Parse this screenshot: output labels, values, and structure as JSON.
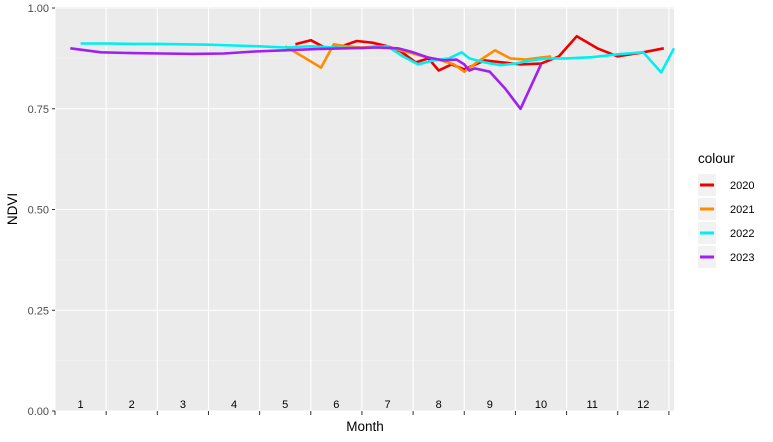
{
  "chart_data": {
    "type": "line",
    "xlabel": "Month",
    "ylabel": "NDVI",
    "ylim": [
      0,
      1
    ],
    "y_ticks": [
      "0.00",
      "0.25",
      "0.50",
      "0.75",
      "1.00"
    ],
    "y_tick_values": [
      0,
      0.25,
      0.5,
      0.75,
      1.0
    ],
    "xlim": [
      0.5,
      12.6
    ],
    "month_labels": [
      "1",
      "2",
      "3",
      "4",
      "5",
      "6",
      "7",
      "8",
      "9",
      "10",
      "11",
      "12"
    ],
    "grid": true,
    "legend": {
      "title": "colour",
      "position": "right"
    },
    "series": [
      {
        "name": "2020",
        "color": "#ee0000",
        "x": [
          5.2,
          5.5,
          5.8,
          6.1,
          6.4,
          6.7,
          7.0,
          7.25,
          7.55,
          7.8,
          8.0,
          8.25,
          8.5,
          8.9,
          9.25,
          9.6,
          10.0,
          10.35,
          10.7,
          11.1,
          11.5,
          12.0,
          12.4
        ],
        "y": [
          0.91,
          0.92,
          0.9,
          0.905,
          0.918,
          0.914,
          0.905,
          0.893,
          0.865,
          0.875,
          0.845,
          0.86,
          0.848,
          0.87,
          0.865,
          0.86,
          0.862,
          0.88,
          0.93,
          0.9,
          0.88,
          0.89,
          0.9
        ]
      },
      {
        "name": "2021",
        "color": "#ff8c00",
        "x": [
          5.0,
          5.4,
          5.7,
          5.95,
          6.2,
          6.5,
          6.8,
          7.1,
          7.4,
          7.7,
          8.0,
          8.3,
          8.5,
          8.8,
          9.1,
          9.4,
          9.7,
          10.0,
          10.2
        ],
        "y": [
          0.905,
          0.875,
          0.852,
          0.91,
          0.905,
          0.902,
          0.905,
          0.9,
          0.89,
          0.88,
          0.872,
          0.86,
          0.842,
          0.87,
          0.895,
          0.875,
          0.872,
          0.877,
          0.88
        ]
      },
      {
        "name": "2022",
        "color": "#00f0f0",
        "x": [
          1.0,
          1.5,
          2.0,
          2.5,
          3.0,
          3.5,
          4.0,
          4.5,
          5.0,
          5.5,
          6.0,
          6.5,
          7.0,
          7.3,
          7.6,
          7.9,
          8.2,
          8.45,
          8.6,
          8.9,
          9.2,
          9.5,
          9.8,
          10.1,
          10.5,
          11.0,
          11.5,
          12.0,
          12.35,
          12.6
        ],
        "y": [
          0.912,
          0.912,
          0.911,
          0.911,
          0.91,
          0.909,
          0.907,
          0.905,
          0.902,
          0.905,
          0.902,
          0.9,
          0.905,
          0.88,
          0.86,
          0.87,
          0.875,
          0.89,
          0.875,
          0.865,
          0.858,
          0.862,
          0.87,
          0.875,
          0.875,
          0.878,
          0.885,
          0.89,
          0.84,
          0.9
        ]
      },
      {
        "name": "2023",
        "color": "#a020f0",
        "x": [
          0.8,
          1.4,
          2.0,
          2.6,
          3.2,
          3.8,
          4.4,
          5.0,
          5.6,
          6.2,
          6.8,
          7.2,
          7.5,
          7.8,
          8.1,
          8.35,
          8.5,
          8.6,
          8.7,
          9.0,
          9.3,
          9.6,
          10.0
        ],
        "y": [
          0.9,
          0.89,
          0.888,
          0.887,
          0.886,
          0.887,
          0.892,
          0.895,
          0.898,
          0.9,
          0.902,
          0.9,
          0.89,
          0.877,
          0.87,
          0.872,
          0.86,
          0.845,
          0.85,
          0.842,
          0.8,
          0.75,
          0.86
        ]
      }
    ]
  }
}
